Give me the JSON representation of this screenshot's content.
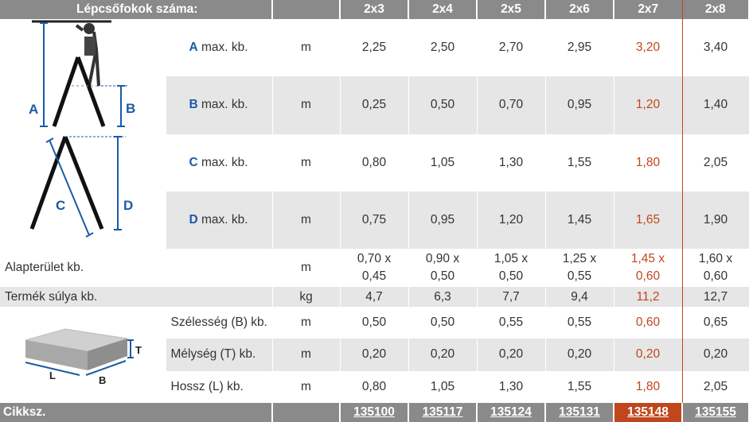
{
  "header": {
    "title": "Lépcsőfokok száma:",
    "columns": [
      "2x3",
      "2x4",
      "2x5",
      "2x6",
      "2x7",
      "2x8"
    ]
  },
  "rows": [
    {
      "letter": "A",
      "label": "max. kb.",
      "unit": "m",
      "values": [
        "2,25",
        "2,50",
        "2,70",
        "2,95",
        "3,20",
        "3,40"
      ]
    },
    {
      "letter": "B",
      "label": "max. kb.",
      "unit": "m",
      "values": [
        "0,25",
        "0,50",
        "0,70",
        "0,95",
        "1,20",
        "1,40"
      ]
    },
    {
      "letter": "C",
      "label": "max. kb.",
      "unit": "m",
      "values": [
        "0,80",
        "1,05",
        "1,30",
        "1,55",
        "1,80",
        "2,05"
      ]
    },
    {
      "letter": "D",
      "label": "max. kb.",
      "unit": "m",
      "values": [
        "0,75",
        "0,95",
        "1,20",
        "1,45",
        "1,65",
        "1,90"
      ]
    }
  ],
  "base": {
    "label": "Alapterület kb.",
    "unit": "m",
    "values": [
      [
        "0,70 x",
        "0,45"
      ],
      [
        "0,90 x",
        "0,50"
      ],
      [
        "1,05 x",
        "0,50"
      ],
      [
        "1,25 x",
        "0,55"
      ],
      [
        "1,45 x",
        "0,60"
      ],
      [
        "1,60 x",
        "0,60"
      ]
    ]
  },
  "weight": {
    "label": "Termék súlya kb.",
    "unit": "kg",
    "values": [
      "4,7",
      "6,3",
      "7,7",
      "9,4",
      "11,2",
      "12,7"
    ]
  },
  "pack": [
    {
      "label": "Szélesség (B) kb.",
      "unit": "m",
      "values": [
        "0,50",
        "0,50",
        "0,55",
        "0,55",
        "0,60",
        "0,65"
      ]
    },
    {
      "label": "Mélység (T) kb.",
      "unit": "m",
      "values": [
        "0,20",
        "0,20",
        "0,20",
        "0,20",
        "0,20",
        "0,20"
      ]
    },
    {
      "label": "Hossz (L) kb.",
      "unit": "m",
      "values": [
        "0,80",
        "1,05",
        "1,30",
        "1,55",
        "1,80",
        "2,05"
      ]
    }
  ],
  "footer": {
    "label": "Cikksz.",
    "codes": [
      "135100",
      "135117",
      "135124",
      "135131",
      "135148",
      "135155"
    ]
  },
  "diagram": {
    "labels": [
      "A",
      "B",
      "C",
      "D"
    ],
    "box_labels": [
      "T",
      "L",
      "B"
    ]
  },
  "colors": {
    "header_bg": "#8a8a8a",
    "highlight": "#c0461c",
    "letter": "#1a5aa8",
    "shade": "#e6e6e6"
  }
}
